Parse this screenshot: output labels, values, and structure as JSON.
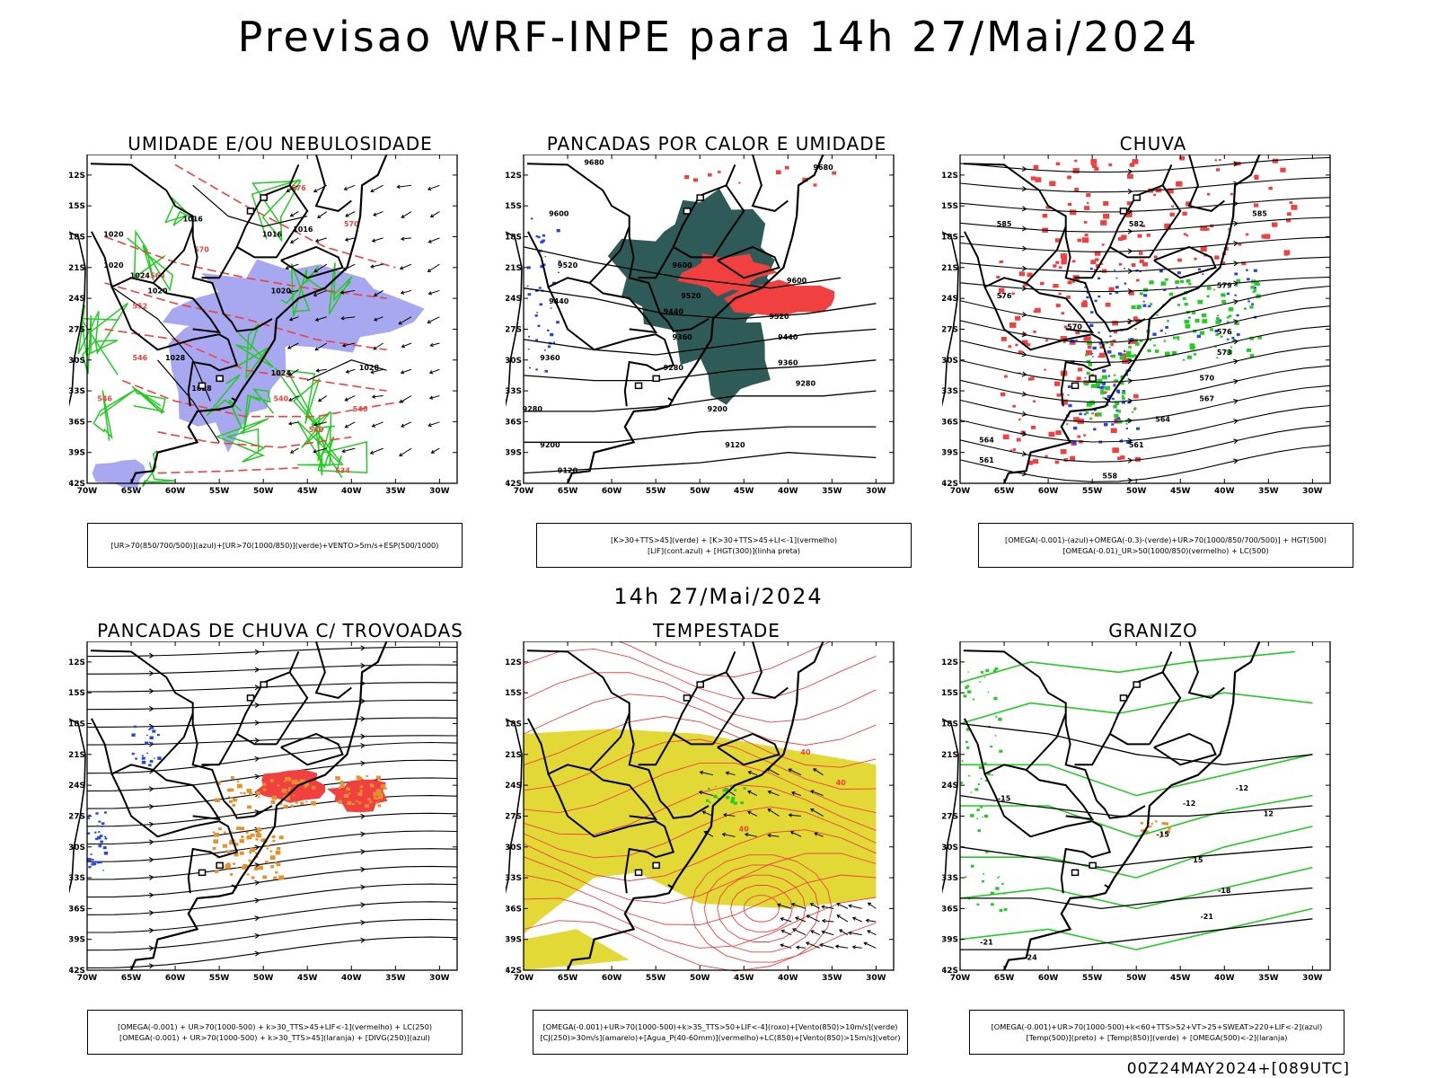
{
  "title": "Previsao WRF-INPE  para 14h 27/Mai/2024",
  "mid_title": "14h 27/Mai/2024",
  "run_label": "00Z24MAY2024+[089UTC]",
  "axes": {
    "lat_labels": [
      "12S",
      "15S",
      "18S",
      "21S",
      "24S",
      "27S",
      "30S",
      "33S",
      "36S",
      "39S",
      "42S"
    ],
    "lon_labels": [
      "70W",
      "65W",
      "60W",
      "55W",
      "50W",
      "45W",
      "40W",
      "35W",
      "30W"
    ]
  },
  "colors": {
    "blue_shade": "#a8a8f0",
    "dark_teal": "#2e5a58",
    "red": "#f04040",
    "green": "#22cc22",
    "orange": "#e8902a",
    "yellow": "#e2d936",
    "blue": "#2244ee",
    "black": "#000000"
  },
  "chart_data": [
    {
      "type": "map",
      "title": "UMIDADE E/OU NEBULOSIDADE",
      "legend": [
        "[UR>70(850/700/500)](azul)+[UR>70(1000/850)](verde)+VENTO>5m/s+ESP(500/1000)"
      ],
      "contour_labels": [
        "1016",
        "1020",
        "1024",
        "1028",
        "576",
        "570",
        "564",
        "558",
        "552",
        "546",
        "540",
        "534"
      ]
    },
    {
      "type": "map",
      "title": "PANCADAS POR CALOR E UMIDADE",
      "legend": [
        "[K>30+TTS>45](verde) + [K>30+TTS>45+LI<-1](vermelho)",
        "[LIF](cont.azul) + [HGT(300)](linha preta)"
      ],
      "contour_labels": [
        "9680",
        "9600",
        "9520",
        "9440",
        "9360",
        "9280",
        "9200",
        "9120"
      ]
    },
    {
      "type": "map",
      "title": "CHUVA",
      "legend": [
        "[OMEGA(-0.001)-(azul)+OMEGA(-0.3)-(verde)+UR>70(1000/850/700/500)] + HGT(500)",
        "[OMEGA(-0.01)_UR>50(1000/850)(vermelho) + LC(500)"
      ],
      "contour_labels": [
        "585",
        "582",
        "579",
        "576",
        "573",
        "570",
        "567",
        "564",
        "561",
        "558"
      ]
    },
    {
      "type": "map",
      "title": "PANCADAS DE CHUVA C/ TROVOADAS",
      "legend": [
        "[OMEGA(-0.001) + UR>70(1000-500) + k>30_TTS>45+LIF<-1](vermelho) + LC(250)",
        "[OMEGA(-0.001) + UR>70(1000-500) + k>30_TTS>45](laranja) + [DIVG(250)](azul)"
      ],
      "contour_labels": []
    },
    {
      "type": "map",
      "title": "TEMPESTADE",
      "legend": [
        "[OMEGA(-0.001)+UR>70(1000-500)+k>35_TTS>50+LIF<-4](roxo)+[Vento(850)>10m/s](verde)",
        "[CJ(250)>30m/s](amarelo)+[Agua_P(40-60mm)](vermelho)+LC(850)+[Vento(850)>15m/s](vetor)"
      ],
      "contour_labels": [
        "40",
        "40",
        "40"
      ]
    },
    {
      "type": "map",
      "title": "GRANIZO",
      "legend": [
        "[OMEGA(-0.001)+UR>70(1000-500)+k<60+TTS>52+VT>25+SWEAT>220+LIF<-2](azul)",
        "[Temp(500)](preto) + [Temp(850)](verde) + [OMEGA(500)<-2](laranja)"
      ],
      "contour_labels": [
        "-12",
        "-15",
        "-18",
        "-21",
        "-24",
        "15",
        "12"
      ]
    }
  ]
}
